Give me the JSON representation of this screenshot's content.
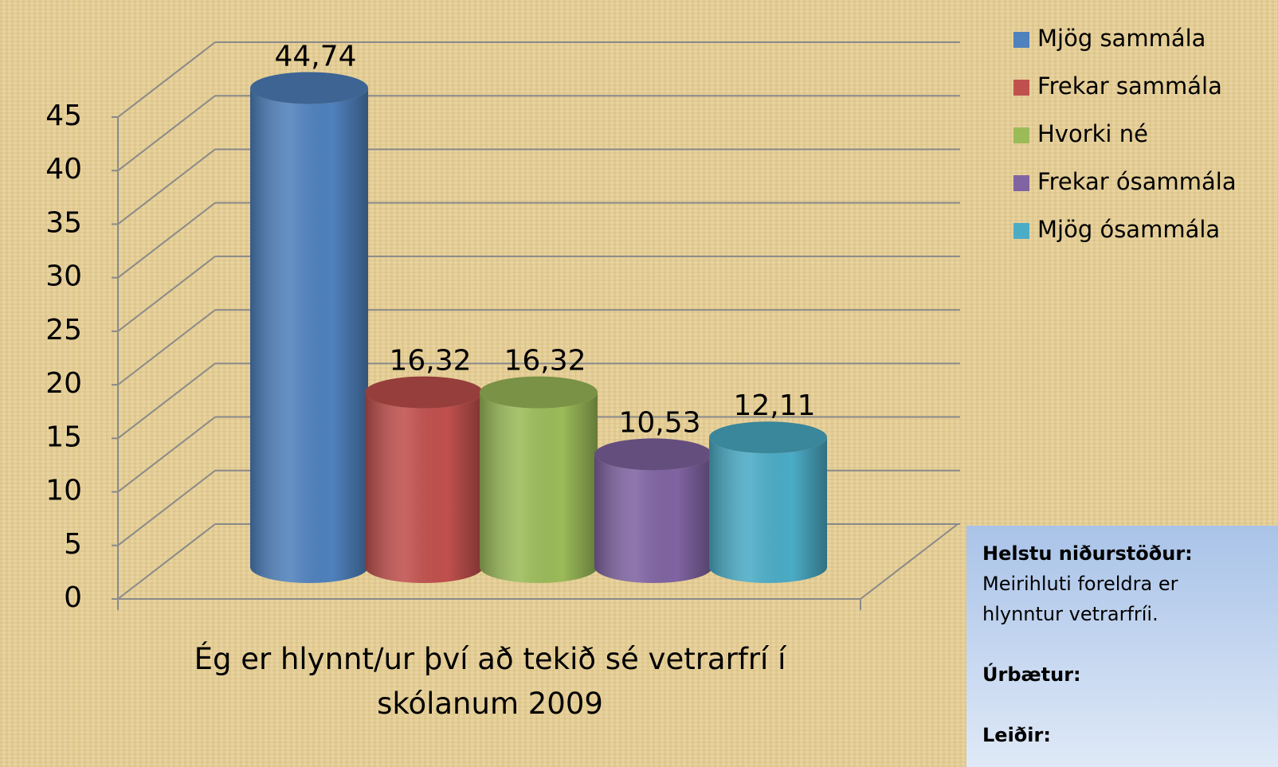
{
  "chart_data": {
    "type": "bar",
    "categories": [
      "Ég er hlynnt/ur því að tekið sé vetrarfrí í skólanum 2009"
    ],
    "series": [
      {
        "name": "Mjög sammála",
        "color": "#4f81bd",
        "values": [
          44.74
        ],
        "value_labels": [
          "44,74"
        ]
      },
      {
        "name": "Frekar sammála",
        "color": "#c0504d",
        "values": [
          16.32
        ],
        "value_labels": [
          "16,32"
        ]
      },
      {
        "name": "Hvorki né",
        "color": "#9bbb59",
        "values": [
          16.32
        ],
        "value_labels": [
          "16,32"
        ]
      },
      {
        "name": "Frekar ósammála",
        "color": "#8064a2",
        "values": [
          10.53
        ],
        "value_labels": [
          "10,53"
        ]
      },
      {
        "name": "Mjög ósammála",
        "color": "#4bacc6",
        "values": [
          12.11
        ],
        "value_labels": [
          "12,11"
        ]
      }
    ],
    "ylim": [
      0,
      45
    ],
    "yticks": [
      0,
      5,
      10,
      15,
      20,
      25,
      30,
      35,
      40,
      45
    ],
    "grid": true,
    "legend": "right"
  },
  "text_box": {
    "heading": "Helstu niðurstöður:",
    "body": "Meirihluti foreldra er hlynntur vetrarfríi.",
    "item1": "Úrbætur:",
    "item2": "Leiðir:"
  }
}
